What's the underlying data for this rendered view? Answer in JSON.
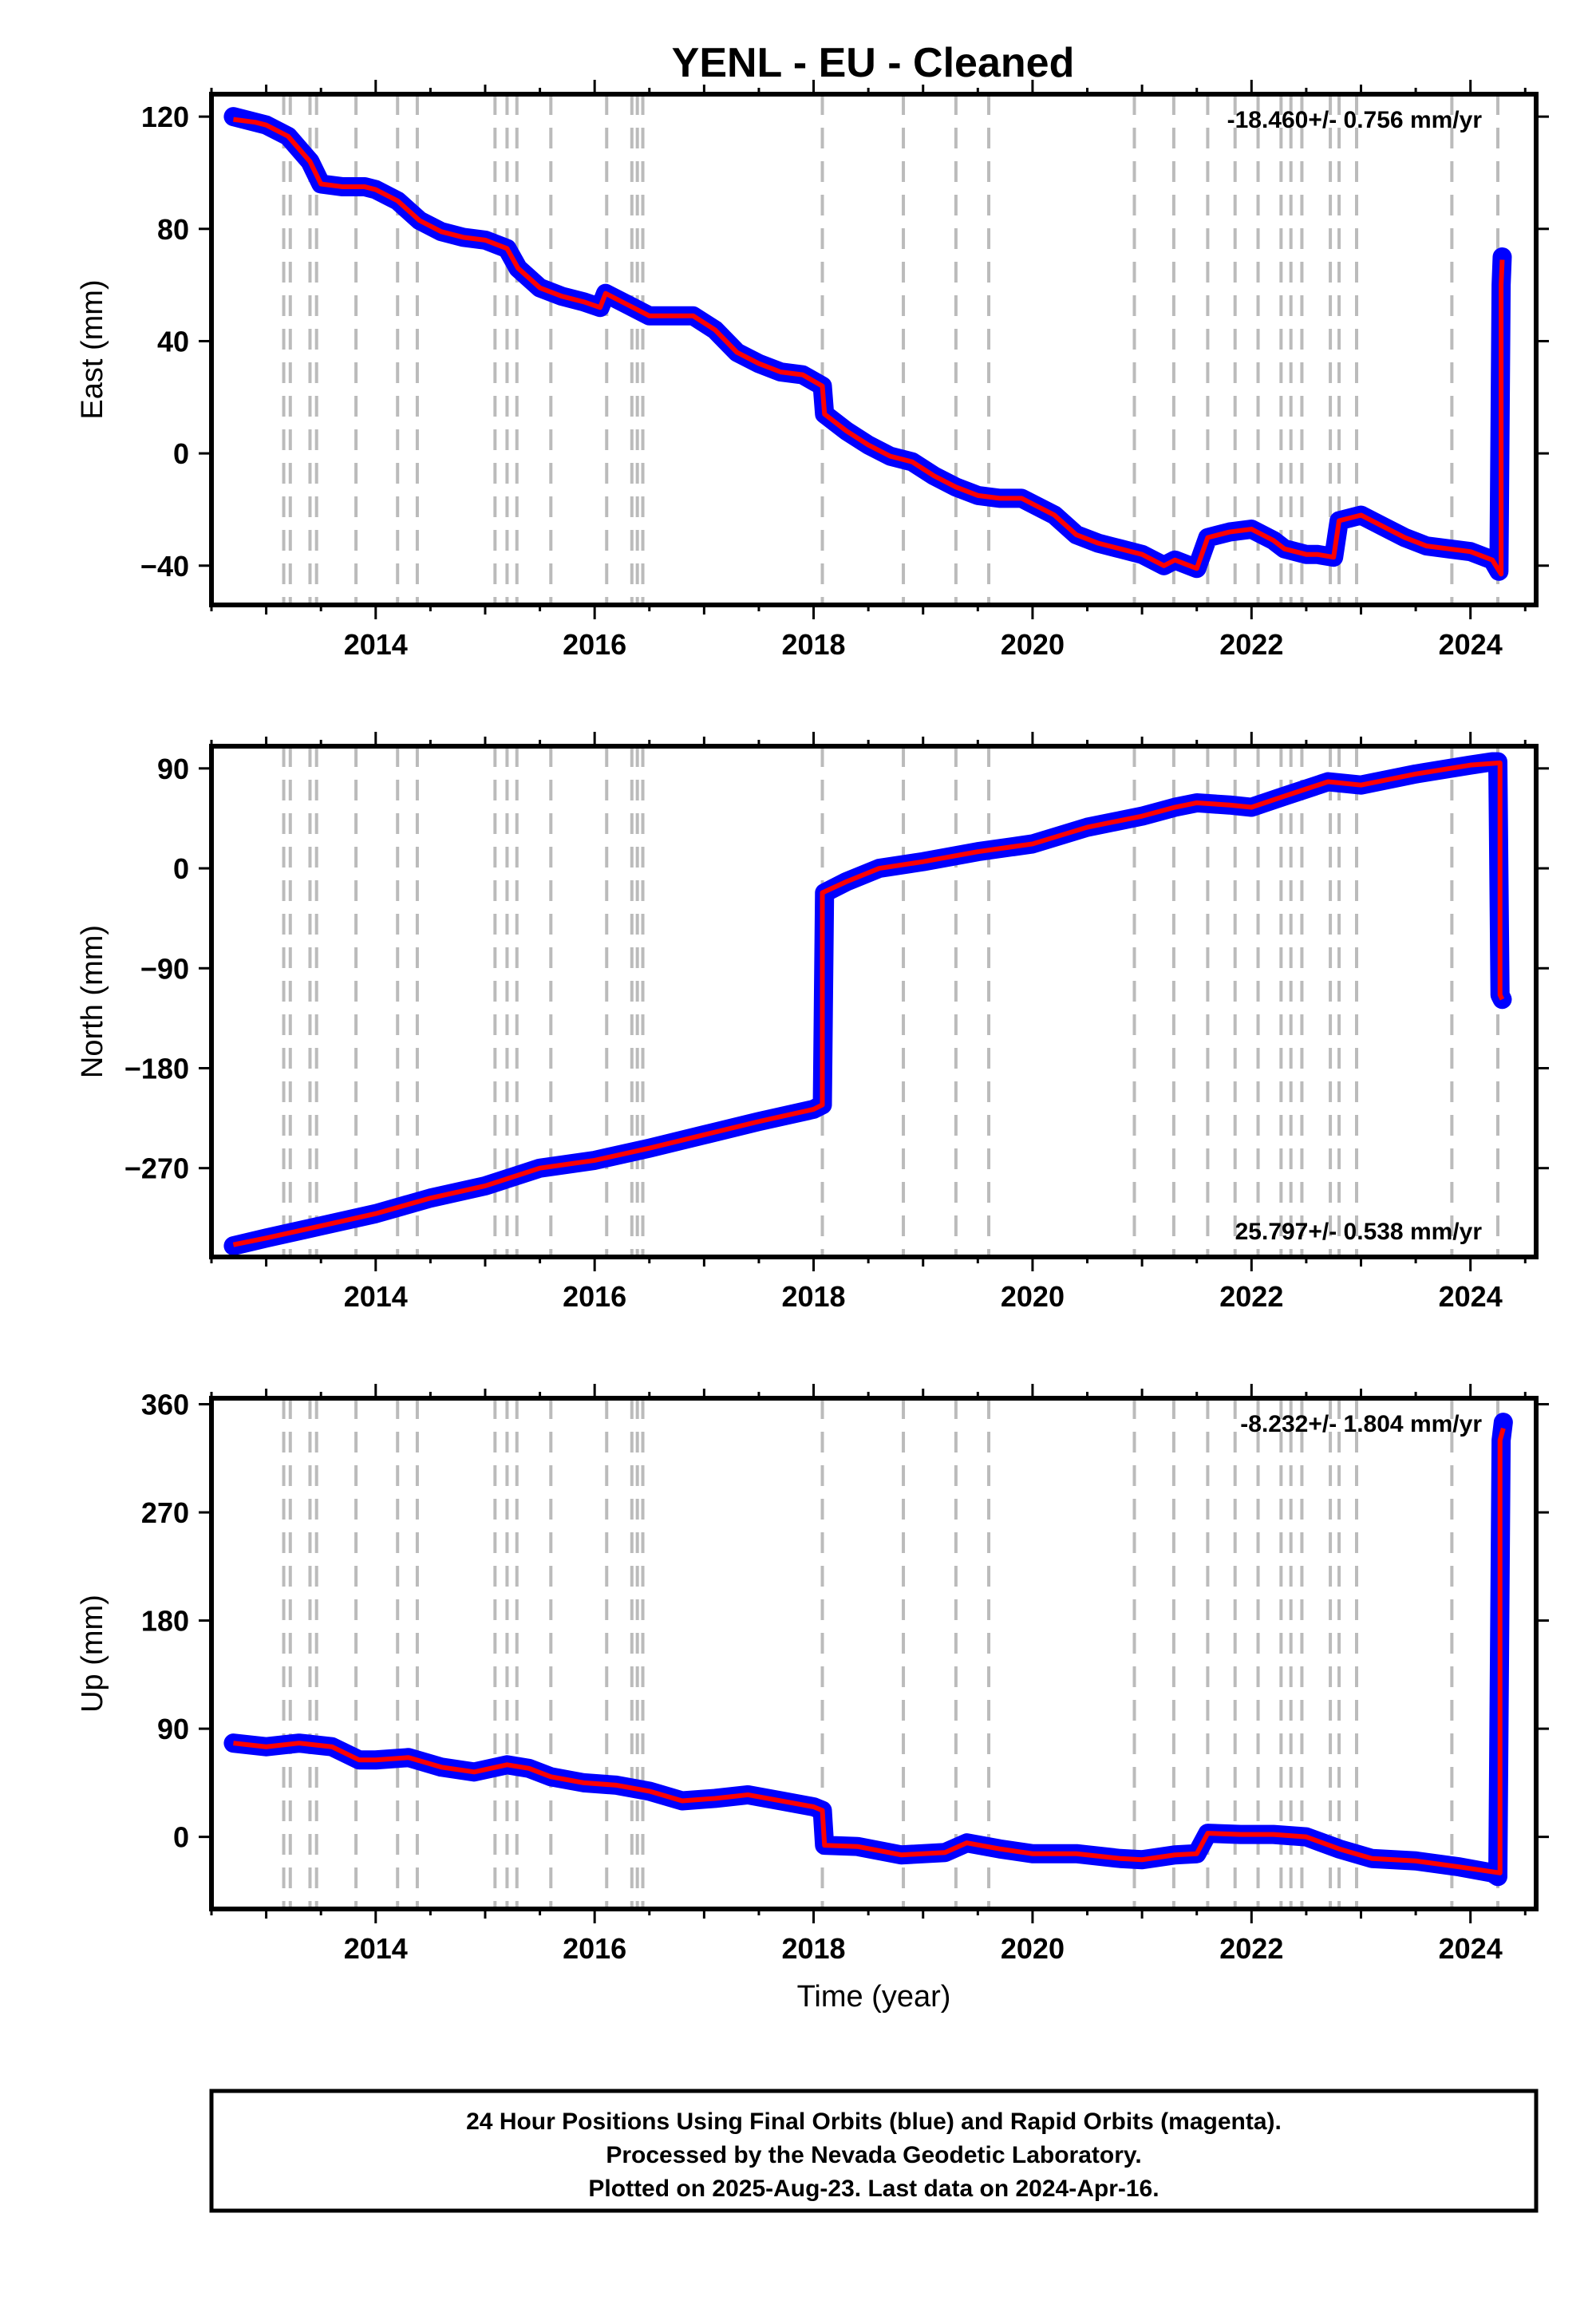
{
  "title": "YENL  - EU - Cleaned",
  "colors": {
    "final_orbits": "#0000ff",
    "model": "#ff0000",
    "event_lines": "#bbbbbb",
    "axis": "#000000"
  },
  "caption": {
    "line1": "24 Hour Positions Using Final Orbits (blue) and Rapid Orbits (magenta).",
    "line2": "Processed by the Nevada Geodetic Laboratory.",
    "line3": "Plotted on 2025-Aug-23. Last data on 2024-Apr-16."
  },
  "chart_data": [
    {
      "type": "scatter",
      "ylabel": "East (mm)",
      "xlabel": "",
      "xlim": [
        2012.5,
        2024.6
      ],
      "ylim": [
        -54,
        128
      ],
      "x_ticks": [
        2014,
        2016,
        2018,
        2020,
        2022,
        2024
      ],
      "y_ticks": [
        -40,
        0,
        40,
        80,
        120
      ],
      "y_tick_labels": [
        "−40",
        "0",
        "40",
        "80",
        "120"
      ],
      "rate_text": "-18.460+/- 0.756 mm/yr",
      "rate_position": "top-right",
      "series": [
        {
          "kind": "points",
          "x": [
            2012.7,
            2012.9,
            2013.0,
            2013.2,
            2013.4,
            2013.5,
            2013.7,
            2013.9,
            2014.0,
            2014.2,
            2014.4,
            2014.6,
            2014.8,
            2015.0,
            2015.2,
            2015.3,
            2015.5,
            2015.7,
            2015.9,
            2016.05,
            2016.1,
            2016.3,
            2016.5,
            2016.7,
            2016.9,
            2017.1,
            2017.3,
            2017.5,
            2017.7,
            2017.9,
            2018.08,
            2018.1,
            2018.3,
            2018.5,
            2018.7,
            2018.9,
            2019.1,
            2019.3,
            2019.5,
            2019.7,
            2019.9,
            2020.2,
            2020.4,
            2020.6,
            2020.8,
            2021.0,
            2021.2,
            2021.3,
            2021.5,
            2021.6,
            2021.8,
            2022.0,
            2022.2,
            2022.3,
            2022.5,
            2022.6,
            2022.75,
            2022.8,
            2023.0,
            2023.2,
            2023.4,
            2023.6,
            2023.8,
            2024.0,
            2024.2,
            2024.26,
            2024.28,
            2024.29
          ],
          "y": [
            120,
            118,
            117,
            113,
            104,
            96,
            95,
            95,
            94,
            90,
            83,
            79,
            77,
            76,
            73,
            66,
            59,
            56,
            54,
            52,
            57,
            53,
            49,
            49,
            49,
            44,
            36,
            32,
            29,
            28,
            24,
            14,
            8,
            3,
            -1,
            -3,
            -8,
            -12,
            -15,
            -16,
            -16,
            -22,
            -29,
            -32,
            -34,
            -36,
            -40,
            -38,
            -41,
            -30,
            -28,
            -27,
            -31,
            -34,
            -36,
            -36,
            -37,
            -24,
            -22,
            -26,
            -30,
            -33,
            -34,
            -35,
            -38,
            -42,
            60,
            70
          ]
        },
        {
          "kind": "line",
          "x": [
            2012.7,
            2012.9,
            2013.0,
            2013.2,
            2013.4,
            2013.5,
            2013.7,
            2013.9,
            2014.0,
            2014.2,
            2014.4,
            2014.6,
            2014.8,
            2015.0,
            2015.2,
            2015.3,
            2015.5,
            2015.7,
            2015.9,
            2016.05,
            2016.1,
            2016.3,
            2016.5,
            2016.7,
            2016.9,
            2017.1,
            2017.3,
            2017.5,
            2017.7,
            2017.9,
            2018.08,
            2018.1,
            2018.3,
            2018.5,
            2018.7,
            2018.9,
            2019.1,
            2019.3,
            2019.5,
            2019.7,
            2019.9,
            2020.2,
            2020.4,
            2020.6,
            2020.8,
            2021.0,
            2021.2,
            2021.3,
            2021.5,
            2021.6,
            2021.8,
            2022.0,
            2022.2,
            2022.3,
            2022.5,
            2022.6,
            2022.75,
            2022.8,
            2023.0,
            2023.2,
            2023.4,
            2023.6,
            2023.8,
            2024.0,
            2024.2,
            2024.28,
            2024.28,
            2024.29
          ],
          "y": [
            119,
            118,
            117,
            113,
            104,
            96,
            95,
            95,
            94,
            90,
            83,
            79,
            77,
            76,
            73,
            66,
            59,
            56,
            54,
            52,
            57,
            53,
            49,
            49,
            49,
            44,
            36,
            32,
            29,
            28,
            24,
            14,
            8,
            3,
            -1,
            -3,
            -8,
            -12,
            -15,
            -16,
            -16,
            -22,
            -29,
            -32,
            -34,
            -36,
            -40,
            -38,
            -41,
            -30,
            -28,
            -27,
            -31,
            -34,
            -36,
            -36,
            -37,
            -24,
            -22,
            -26,
            -30,
            -33,
            -34,
            -35,
            -38,
            -43,
            60,
            69
          ]
        }
      ]
    },
    {
      "type": "scatter",
      "ylabel": "North (mm)",
      "xlabel": "",
      "xlim": [
        2012.5,
        2024.6
      ],
      "ylim": [
        -350,
        110
      ],
      "x_ticks": [
        2014,
        2016,
        2018,
        2020,
        2022,
        2024
      ],
      "y_ticks": [
        -270,
        -180,
        -90,
        0,
        90
      ],
      "y_tick_labels": [
        "−270",
        "−180",
        "−90",
        "0",
        "90"
      ],
      "rate_text": "25.797+/- 0.538 mm/yr",
      "rate_position": "bottom-right",
      "series": [
        {
          "kind": "points",
          "x": [
            2012.7,
            2013.0,
            2013.5,
            2014.0,
            2014.5,
            2015.0,
            2015.5,
            2016.0,
            2016.5,
            2017.0,
            2017.5,
            2018.0,
            2018.08,
            2018.1,
            2018.3,
            2018.6,
            2019.0,
            2019.5,
            2020.0,
            2020.5,
            2021.0,
            2021.3,
            2021.5,
            2021.8,
            2022.0,
            2022.3,
            2022.7,
            2023.0,
            2023.5,
            2024.0,
            2024.2,
            2024.25,
            2024.27,
            2024.29
          ],
          "y": [
            -340,
            -333,
            -322,
            -311,
            -297,
            -286,
            -270,
            -263,
            -252,
            -240,
            -228,
            -217,
            -213,
            -22,
            -12,
            0,
            6,
            15,
            22,
            37,
            47,
            55,
            59,
            57,
            55,
            65,
            78,
            75,
            85,
            93,
            96,
            96,
            -114,
            -118
          ]
        },
        {
          "kind": "line",
          "x": [
            2012.7,
            2013.0,
            2013.5,
            2014.0,
            2014.5,
            2015.0,
            2015.5,
            2016.0,
            2016.5,
            2017.0,
            2017.5,
            2018.0,
            2018.08,
            2018.08,
            2018.3,
            2018.6,
            2019.0,
            2019.5,
            2020.0,
            2020.5,
            2021.0,
            2021.3,
            2021.5,
            2021.8,
            2022.0,
            2022.3,
            2022.7,
            2023.0,
            2023.5,
            2024.0,
            2024.27,
            2024.27,
            2024.29
          ],
          "y": [
            -339,
            -333,
            -322,
            -311,
            -297,
            -286,
            -270,
            -263,
            -252,
            -240,
            -228,
            -217,
            -213,
            -22,
            -12,
            0,
            6,
            15,
            22,
            37,
            47,
            55,
            59,
            57,
            55,
            65,
            78,
            75,
            85,
            93,
            95,
            -114,
            -118
          ]
        }
      ]
    },
    {
      "type": "scatter",
      "ylabel": "Up (mm)",
      "xlabel": "Time (year)",
      "xlim": [
        2012.5,
        2024.6
      ],
      "ylim": [
        -60,
        365
      ],
      "x_ticks": [
        2014,
        2016,
        2018,
        2020,
        2022,
        2024
      ],
      "y_ticks": [
        0,
        90,
        180,
        270,
        360
      ],
      "y_tick_labels": [
        "0",
        "90",
        "180",
        "270",
        "360"
      ],
      "rate_text": "-8.232+/- 1.804 mm/yr",
      "rate_position": "top-right",
      "series": [
        {
          "kind": "points",
          "x": [
            2012.7,
            2013.0,
            2013.3,
            2013.6,
            2013.85,
            2014.0,
            2014.3,
            2014.6,
            2014.9,
            2015.2,
            2015.4,
            2015.6,
            2015.9,
            2016.2,
            2016.5,
            2016.8,
            2017.1,
            2017.4,
            2017.7,
            2018.0,
            2018.08,
            2018.1,
            2018.4,
            2018.8,
            2019.2,
            2019.4,
            2019.7,
            2020.0,
            2020.4,
            2020.8,
            2021.0,
            2021.3,
            2021.5,
            2021.6,
            2021.9,
            2022.2,
            2022.5,
            2022.8,
            2023.1,
            2023.5,
            2023.9,
            2024.2,
            2024.25,
            2024.28,
            2024.3
          ],
          "y": [
            78,
            75,
            78,
            75,
            64,
            64,
            66,
            58,
            54,
            60,
            57,
            50,
            45,
            43,
            38,
            30,
            32,
            35,
            30,
            25,
            22,
            -7,
            -8,
            -15,
            -13,
            -5,
            -10,
            -14,
            -14,
            -18,
            -19,
            -15,
            -14,
            3,
            2,
            2,
            0,
            -10,
            -18,
            -20,
            -25,
            -30,
            -33,
            330,
            345
          ]
        },
        {
          "kind": "line",
          "x": [
            2012.7,
            2013.0,
            2013.3,
            2013.6,
            2013.85,
            2014.0,
            2014.3,
            2014.6,
            2014.9,
            2015.2,
            2015.4,
            2015.6,
            2015.9,
            2016.2,
            2016.5,
            2016.8,
            2017.1,
            2017.4,
            2017.7,
            2018.0,
            2018.08,
            2018.1,
            2018.4,
            2018.8,
            2019.2,
            2019.4,
            2019.7,
            2020.0,
            2020.4,
            2020.8,
            2021.0,
            2021.3,
            2021.5,
            2021.6,
            2021.9,
            2022.2,
            2022.5,
            2022.8,
            2023.1,
            2023.5,
            2023.9,
            2024.27,
            2024.27,
            2024.3
          ],
          "y": [
            78,
            75,
            78,
            75,
            64,
            64,
            66,
            58,
            54,
            60,
            57,
            50,
            45,
            43,
            38,
            30,
            32,
            35,
            30,
            25,
            22,
            -7,
            -8,
            -15,
            -13,
            -5,
            -10,
            -14,
            -14,
            -18,
            -19,
            -15,
            -14,
            3,
            2,
            2,
            0,
            -10,
            -18,
            -20,
            -25,
            -30,
            330,
            340
          ]
        }
      ]
    }
  ],
  "event_lines": [
    2013.16,
    2013.22,
    2013.4,
    2013.46,
    2013.82,
    2014.2,
    2014.38,
    2015.09,
    2015.2,
    2015.29,
    2015.6,
    2016.11,
    2016.34,
    2016.39,
    2016.44,
    2018.08,
    2018.82,
    2019.3,
    2019.6,
    2020.93,
    2021.29,
    2021.6,
    2021.85,
    2022.06,
    2022.27,
    2022.36,
    2022.46,
    2022.72,
    2022.8,
    2022.96,
    2023.83,
    2024.25
  ]
}
